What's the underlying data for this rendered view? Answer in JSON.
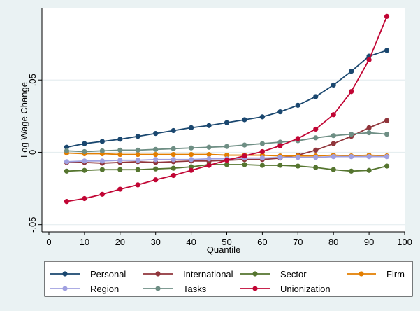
{
  "chart_data": {
    "type": "line",
    "title": "",
    "xlabel": "Quantile",
    "ylabel": "Log Wage Change",
    "xlim": [
      0,
      100
    ],
    "ylim": [
      -0.055,
      0.1
    ],
    "xticks": [
      0,
      10,
      20,
      30,
      40,
      50,
      60,
      70,
      80,
      90,
      100
    ],
    "xtick_labels": [
      "0",
      "10",
      "20",
      "30",
      "40",
      "50",
      "60",
      "70",
      "80",
      "90",
      "100"
    ],
    "yticks": [
      -0.05,
      0,
      0.05
    ],
    "ytick_labels": [
      "-.05",
      "0",
      ".05"
    ],
    "grid": "horizontal",
    "legend_position": "bottom",
    "x": [
      5,
      10,
      15,
      20,
      25,
      30,
      35,
      40,
      45,
      50,
      55,
      60,
      65,
      70,
      75,
      80,
      85,
      90,
      95
    ],
    "series": [
      {
        "name": "Personal",
        "color": "#1a476f",
        "values": [
          0.0035,
          0.006,
          0.0075,
          0.009,
          0.011,
          0.013,
          0.015,
          0.017,
          0.0185,
          0.0205,
          0.0225,
          0.0245,
          0.028,
          0.0325,
          0.0385,
          0.0465,
          0.056,
          0.0665,
          0.0705
        ]
      },
      {
        "name": "International",
        "color": "#90353b",
        "values": [
          -0.007,
          -0.007,
          -0.0075,
          -0.007,
          -0.0065,
          -0.007,
          -0.0065,
          -0.006,
          -0.006,
          -0.0055,
          -0.005,
          -0.005,
          -0.004,
          -0.002,
          0.0015,
          0.006,
          0.011,
          0.017,
          0.022
        ]
      },
      {
        "name": "Sector",
        "color": "#55752f",
        "values": [
          -0.013,
          -0.0125,
          -0.012,
          -0.012,
          -0.012,
          -0.0115,
          -0.011,
          -0.01,
          -0.0085,
          -0.0085,
          -0.0085,
          -0.009,
          -0.009,
          -0.0095,
          -0.0105,
          -0.012,
          -0.013,
          -0.0125,
          -0.0095
        ]
      },
      {
        "name": "Firm",
        "color": "#e37e00",
        "values": [
          -0.0005,
          -0.001,
          -0.001,
          -0.0015,
          -0.0015,
          -0.0015,
          -0.0015,
          -0.0015,
          -0.0015,
          -0.002,
          -0.002,
          -0.002,
          -0.0025,
          -0.0025,
          -0.0025,
          -0.002,
          -0.0025,
          -0.002,
          -0.0025
        ]
      },
      {
        "name": "Region",
        "color": "#a0a0e0",
        "values": [
          -0.0065,
          -0.006,
          -0.006,
          -0.0055,
          -0.0055,
          -0.005,
          -0.005,
          -0.005,
          -0.0045,
          -0.0045,
          -0.004,
          -0.004,
          -0.0035,
          -0.0035,
          -0.0035,
          -0.003,
          -0.003,
          -0.003,
          -0.003
        ]
      },
      {
        "name": "Tasks",
        "color": "#6e8e84",
        "values": [
          0.001,
          0.0005,
          0.001,
          0.0015,
          0.0015,
          0.002,
          0.0025,
          0.003,
          0.0035,
          0.004,
          0.005,
          0.006,
          0.007,
          0.008,
          0.01,
          0.0115,
          0.0125,
          0.0135,
          0.0125
        ]
      },
      {
        "name": "Unionization",
        "color": "#c10534",
        "values": [
          -0.034,
          -0.032,
          -0.029,
          -0.0255,
          -0.0225,
          -0.019,
          -0.016,
          -0.0125,
          -0.009,
          -0.0055,
          -0.0025,
          0.0005,
          0.0045,
          0.0095,
          0.016,
          0.026,
          0.042,
          0.064,
          0.094
        ]
      }
    ]
  }
}
